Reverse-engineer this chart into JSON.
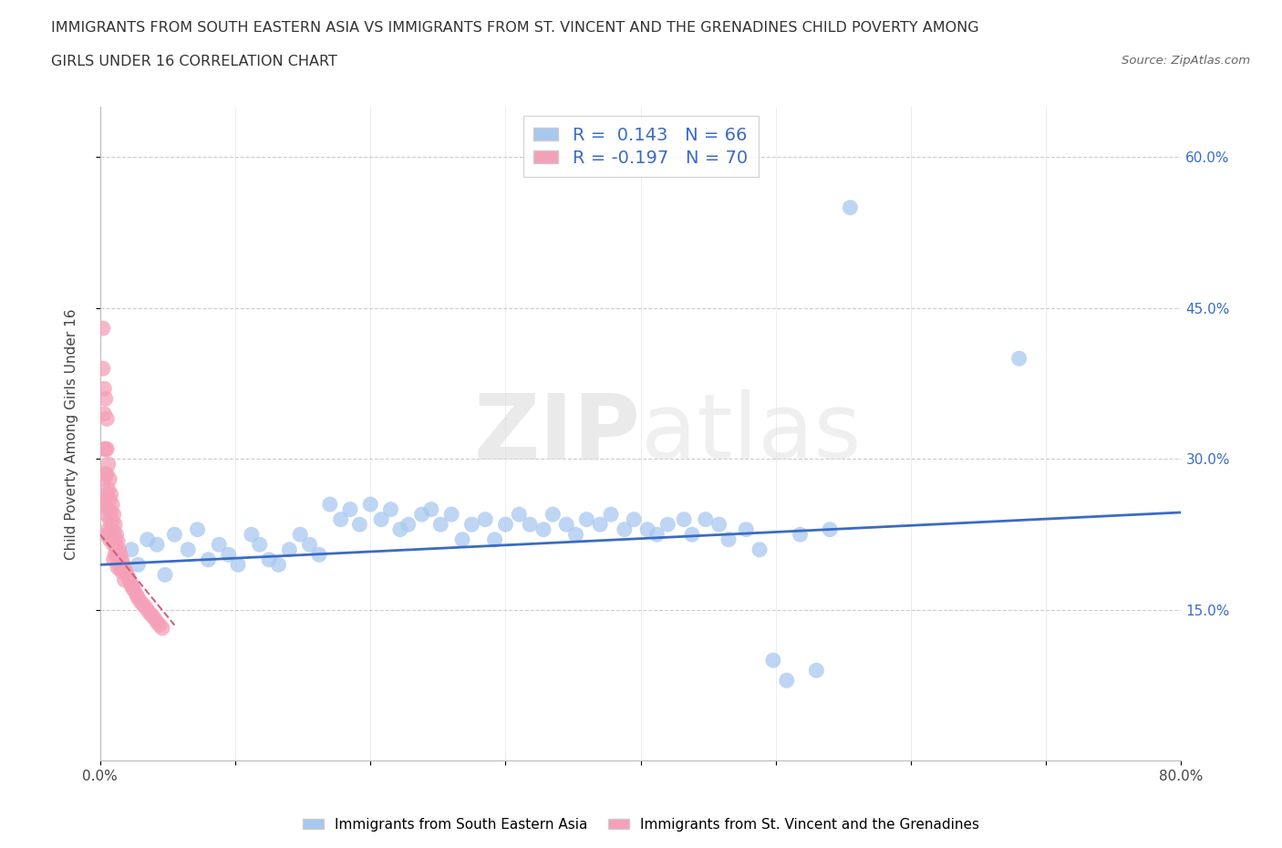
{
  "title_line1": "IMMIGRANTS FROM SOUTH EASTERN ASIA VS IMMIGRANTS FROM ST. VINCENT AND THE GRENADINES CHILD POVERTY AMONG",
  "title_line2": "GIRLS UNDER 16 CORRELATION CHART",
  "source_text": "Source: ZipAtlas.com",
  "ylabel": "Child Poverty Among Girls Under 16",
  "xlabel": "",
  "xlim": [
    0.0,
    0.8
  ],
  "ylim": [
    0.0,
    0.65
  ],
  "xticks": [
    0.0,
    0.1,
    0.2,
    0.3,
    0.4,
    0.5,
    0.6,
    0.7,
    0.8
  ],
  "yticks": [
    0.15,
    0.3,
    0.45,
    0.6
  ],
  "xticklabels": [
    "0.0%",
    "",
    "",
    "",
    "",
    "",
    "",
    "",
    "80.0%"
  ],
  "yticklabels_right": [
    "15.0%",
    "30.0%",
    "45.0%",
    "60.0%"
  ],
  "blue_color": "#A8C8F0",
  "pink_color": "#F4A0B8",
  "blue_line_color": "#3A6BC4",
  "pink_line_color": "#D06080",
  "R_blue": 0.143,
  "N_blue": 66,
  "R_pink": -0.197,
  "N_pink": 70,
  "legend_label_blue": "Immigrants from South Eastern Asia",
  "legend_label_pink": "Immigrants from St. Vincent and the Grenadines",
  "watermark_zip": "ZIP",
  "watermark_atlas": "atlas",
  "grid_color": "#CCCCCC",
  "blue_scatter_x": [
    0.023,
    0.028,
    0.035,
    0.042,
    0.048,
    0.055,
    0.065,
    0.072,
    0.08,
    0.088,
    0.095,
    0.102,
    0.112,
    0.118,
    0.125,
    0.132,
    0.14,
    0.148,
    0.155,
    0.162,
    0.17,
    0.178,
    0.185,
    0.192,
    0.2,
    0.208,
    0.215,
    0.222,
    0.228,
    0.238,
    0.245,
    0.252,
    0.26,
    0.268,
    0.275,
    0.285,
    0.292,
    0.3,
    0.31,
    0.318,
    0.328,
    0.335,
    0.345,
    0.352,
    0.36,
    0.37,
    0.378,
    0.388,
    0.395,
    0.405,
    0.412,
    0.42,
    0.432,
    0.438,
    0.448,
    0.458,
    0.465,
    0.478,
    0.488,
    0.498,
    0.508,
    0.518,
    0.53,
    0.54,
    0.555,
    0.68
  ],
  "blue_scatter_y": [
    0.21,
    0.195,
    0.22,
    0.215,
    0.185,
    0.225,
    0.21,
    0.23,
    0.2,
    0.215,
    0.205,
    0.195,
    0.225,
    0.215,
    0.2,
    0.195,
    0.21,
    0.225,
    0.215,
    0.205,
    0.255,
    0.24,
    0.25,
    0.235,
    0.255,
    0.24,
    0.25,
    0.23,
    0.235,
    0.245,
    0.25,
    0.235,
    0.245,
    0.22,
    0.235,
    0.24,
    0.22,
    0.235,
    0.245,
    0.235,
    0.23,
    0.245,
    0.235,
    0.225,
    0.24,
    0.235,
    0.245,
    0.23,
    0.24,
    0.23,
    0.225,
    0.235,
    0.24,
    0.225,
    0.24,
    0.235,
    0.22,
    0.23,
    0.21,
    0.1,
    0.08,
    0.225,
    0.09,
    0.23,
    0.55,
    0.4
  ],
  "pink_scatter_x": [
    0.002,
    0.002,
    0.003,
    0.003,
    0.003,
    0.003,
    0.003,
    0.004,
    0.004,
    0.004,
    0.004,
    0.005,
    0.005,
    0.005,
    0.005,
    0.005,
    0.005,
    0.006,
    0.006,
    0.006,
    0.006,
    0.007,
    0.007,
    0.007,
    0.007,
    0.008,
    0.008,
    0.008,
    0.009,
    0.009,
    0.009,
    0.01,
    0.01,
    0.01,
    0.01,
    0.011,
    0.011,
    0.011,
    0.012,
    0.012,
    0.013,
    0.013,
    0.013,
    0.014,
    0.014,
    0.015,
    0.015,
    0.016,
    0.016,
    0.017,
    0.018,
    0.018,
    0.019,
    0.02,
    0.021,
    0.022,
    0.023,
    0.024,
    0.025,
    0.027,
    0.028,
    0.03,
    0.032,
    0.034,
    0.036,
    0.038,
    0.04,
    0.042,
    0.044,
    0.046
  ],
  "pink_scatter_y": [
    0.43,
    0.39,
    0.37,
    0.345,
    0.31,
    0.28,
    0.255,
    0.36,
    0.31,
    0.285,
    0.26,
    0.34,
    0.31,
    0.285,
    0.265,
    0.245,
    0.225,
    0.295,
    0.27,
    0.25,
    0.23,
    0.28,
    0.26,
    0.24,
    0.22,
    0.265,
    0.248,
    0.23,
    0.255,
    0.238,
    0.22,
    0.245,
    0.228,
    0.215,
    0.2,
    0.235,
    0.22,
    0.205,
    0.225,
    0.21,
    0.218,
    0.205,
    0.192,
    0.21,
    0.198,
    0.205,
    0.192,
    0.2,
    0.188,
    0.195,
    0.192,
    0.18,
    0.188,
    0.185,
    0.182,
    0.178,
    0.175,
    0.172,
    0.17,
    0.165,
    0.162,
    0.158,
    0.155,
    0.152,
    0.148,
    0.145,
    0.142,
    0.138,
    0.135,
    0.132
  ]
}
